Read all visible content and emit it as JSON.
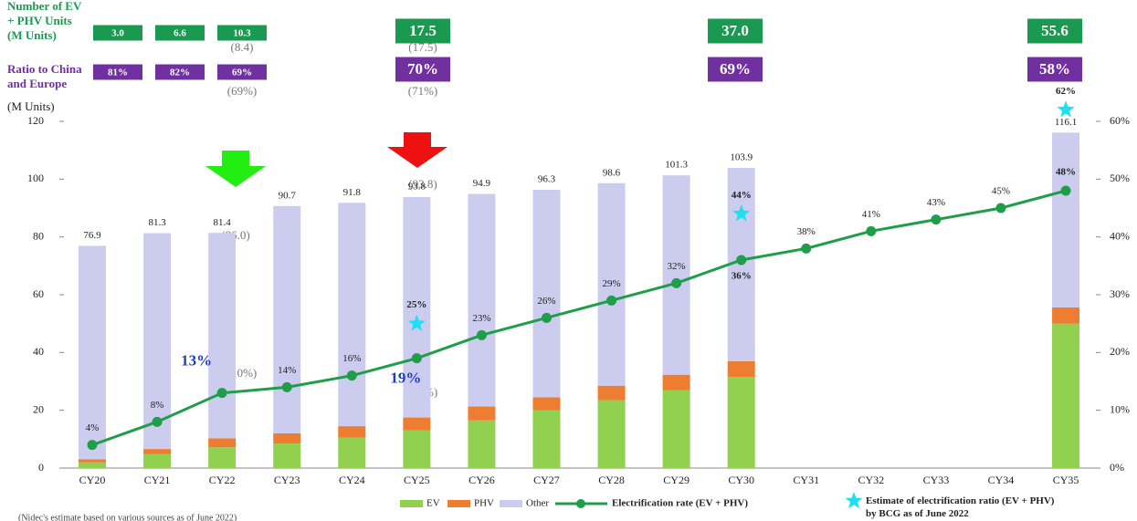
{
  "chart_data": {
    "type": "bar",
    "y_axis_label": "(M Units)",
    "categories": [
      "CY20",
      "CY21",
      "CY22",
      "CY23",
      "CY24",
      "CY25",
      "CY26",
      "CY27",
      "CY28",
      "CY29",
      "CY30",
      "CY31",
      "CY32",
      "CY33",
      "CY34",
      "CY35"
    ],
    "series": [
      {
        "name": "EV",
        "color": "#92d050",
        "values": [
          2.0,
          4.8,
          7.2,
          8.5,
          10.5,
          13.0,
          16.5,
          20.0,
          23.5,
          27.0,
          31.5,
          null,
          null,
          null,
          null,
          50.0
        ]
      },
      {
        "name": "PHV",
        "color": "#ed7d31",
        "values": [
          1.0,
          1.8,
          3.1,
          3.5,
          4.0,
          4.5,
          4.8,
          4.5,
          5.0,
          5.3,
          5.5,
          null,
          null,
          null,
          null,
          5.6
        ]
      },
      {
        "name": "Other",
        "color": "#ccccee",
        "values": [
          73.9,
          74.7,
          71.1,
          78.7,
          77.3,
          76.3,
          73.6,
          71.8,
          70.1,
          69.0,
          66.9,
          null,
          null,
          null,
          null,
          60.5
        ]
      },
      {
        "name": "Electrification rate (EV + PHV)",
        "color": "#1e9e48",
        "axis": "y2",
        "values": [
          4,
          8,
          13,
          14,
          16,
          19,
          23,
          26,
          29,
          32,
          36,
          38,
          41,
          43,
          45,
          48
        ],
        "value_labels": [
          "4%",
          "8%",
          "13%",
          "14%",
          "16%",
          "19%",
          "23%",
          "26%",
          "29%",
          "32%",
          "36%",
          "38%",
          "41%",
          "43%",
          "45%",
          "48%"
        ]
      },
      {
        "name": "Estimate of electrification ratio (EV + PHV) by BCG as of June 2022",
        "color": "#1ee0f0",
        "axis": "y2",
        "values": [
          null,
          null,
          null,
          null,
          null,
          25,
          null,
          null,
          null,
          null,
          44,
          null,
          null,
          null,
          null,
          62
        ],
        "value_labels": [
          null,
          null,
          null,
          null,
          null,
          "25%",
          null,
          null,
          null,
          null,
          "44%",
          null,
          null,
          null,
          null,
          "62%"
        ]
      }
    ],
    "totals": [
      76.9,
      81.3,
      81.4,
      90.7,
      91.8,
      93.8,
      94.9,
      96.3,
      98.6,
      101.3,
      103.9,
      null,
      null,
      null,
      null,
      116.1
    ],
    "ylim": [
      0,
      120
    ],
    "yticks": [
      0,
      20,
      40,
      60,
      80,
      100,
      120
    ],
    "y2lim": [
      0,
      60
    ],
    "y2ticks": [
      {
        "value": 0,
        "label": "0%"
      },
      {
        "value": 10,
        "label": "10%"
      },
      {
        "value": 20,
        "label": "20%"
      },
      {
        "value": 30,
        "label": "30%"
      },
      {
        "value": 40,
        "label": "40%"
      },
      {
        "value": 50,
        "label": "50%"
      },
      {
        "value": 60,
        "label": "60%"
      }
    ],
    "units": {
      "label": [
        "Number of EV",
        "+ PHV Units",
        "(M Units)"
      ],
      "color": "#1a9a50",
      "values": [
        3.0,
        6.6,
        10.3,
        17.5,
        37.0,
        55.6
      ],
      "value_labels": [
        "3.0",
        "6.6",
        "10.3",
        "17.5",
        "37.0",
        "55.6"
      ]
    },
    "ratio": {
      "label": [
        "Ratio to China",
        "and Europe"
      ],
      "color": "#7030a0",
      "values": [
        81,
        82,
        69,
        70,
        69,
        58
      ],
      "value_labels": [
        "81%",
        "82%",
        "69%",
        "70%",
        "69%",
        "58%"
      ]
    },
    "previous_estimates": [
      "(8.4)",
      "(17.5)",
      "(69%)",
      "(71%)",
      "(86.0)",
      "(93.8)",
      "(10%)",
      "(19%)"
    ],
    "note": "(Nidec's estimate based on various sources as of June 2022)"
  }
}
